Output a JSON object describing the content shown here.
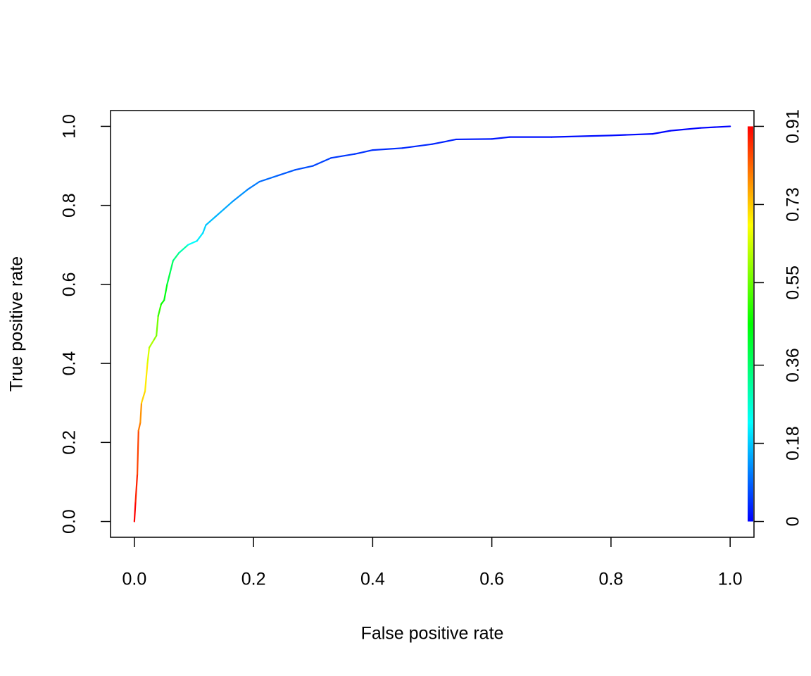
{
  "chart_data": {
    "type": "line",
    "x_label": "False positive rate",
    "y_label": "True positive rate",
    "x": [
      0,
      0.002,
      0.005,
      0.007,
      0.01,
      0.012,
      0.018,
      0.022,
      0.025,
      0.033,
      0.037,
      0.04,
      0.045,
      0.05,
      0.055,
      0.06,
      0.065,
      0.075,
      0.09,
      0.105,
      0.115,
      0.12,
      0.135,
      0.15,
      0.165,
      0.19,
      0.21,
      0.24,
      0.27,
      0.3,
      0.33,
      0.37,
      0.4,
      0.45,
      0.5,
      0.54,
      0.6,
      0.63,
      0.7,
      0.8,
      0.87,
      0.9,
      0.95,
      1
    ],
    "series": [
      {
        "values": [
          0,
          0.05,
          0.12,
          0.23,
          0.25,
          0.3,
          0.33,
          0.4,
          0.44,
          0.46,
          0.47,
          0.52,
          0.55,
          0.56,
          0.6,
          0.63,
          0.66,
          0.68,
          0.7,
          0.71,
          0.73,
          0.75,
          0.77,
          0.79,
          0.81,
          0.84,
          0.86,
          0.875,
          0.89,
          0.9,
          0.92,
          0.93,
          0.94,
          0.945,
          0.955,
          0.967,
          0.968,
          0.973,
          0.973,
          0.977,
          0.981,
          0.989,
          0.996,
          1
        ],
        "cutoffs": [
          0.91,
          0.88,
          0.85,
          0.8,
          0.78,
          0.72,
          0.7,
          0.65,
          0.61,
          0.58,
          0.56,
          0.5,
          0.46,
          0.44,
          0.4,
          0.37,
          0.34,
          0.3,
          0.23,
          0.21,
          0.19,
          0.17,
          0.16,
          0.15,
          0.13,
          0.11,
          0.095,
          0.08,
          0.07,
          0.06,
          0.05,
          0.045,
          0.04,
          0.035,
          0.03,
          0.025,
          0.02,
          0.015,
          0.012,
          0.008,
          0.005,
          0.003,
          0.001,
          0
        ]
      }
    ],
    "xlim": [
      -0.04,
      1.04
    ],
    "ylim": [
      -0.04,
      1.04
    ],
    "xticks": [
      {
        "value": 0,
        "label": "0.0"
      },
      0.2,
      0.4,
      0.6,
      0.8,
      {
        "value": 1,
        "label": "1.0"
      }
    ],
    "yticks": [
      {
        "value": 0,
        "label": "0.0"
      },
      0.2,
      0.4,
      0.6,
      0.8,
      {
        "value": 1,
        "label": "1.0"
      }
    ],
    "colorbar": {
      "colormap": "rainbow",
      "lim": [
        0,
        0.91
      ],
      "ticks": [
        0,
        0.18,
        0.36,
        0.55,
        0.73,
        0.91
      ]
    }
  }
}
